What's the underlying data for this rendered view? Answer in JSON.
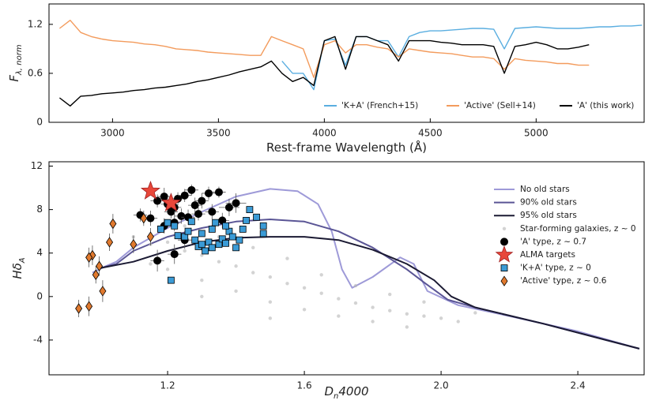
{
  "chart_data": [
    {
      "type": "line",
      "x_label": [
        "Rest-frame Wavelength (Å)"
      ],
      "y_label": [
        "F",
        "λ, norm"
      ],
      "xlim": [
        2700,
        5510
      ],
      "ylim": [
        0,
        1.45
      ],
      "xticks": [
        3000,
        3500,
        4000,
        4500,
        5000
      ],
      "yticks": [
        0,
        0.6,
        1.2
      ],
      "legend": "lower right",
      "x": [
        2750,
        2800,
        2850,
        2900,
        2950,
        3000,
        3050,
        3100,
        3150,
        3200,
        3250,
        3300,
        3350,
        3400,
        3450,
        3500,
        3550,
        3600,
        3650,
        3700,
        3750,
        3800,
        3850,
        3900,
        3950,
        4000,
        4050,
        4100,
        4150,
        4200,
        4250,
        4300,
        4350,
        4400,
        4450,
        4500,
        4550,
        4600,
        4650,
        4700,
        4750,
        4800,
        4850,
        4900,
        4950,
        5000,
        5050,
        5100,
        5150,
        5200,
        5250,
        5300,
        5350,
        5400,
        5450,
        5500
      ],
      "series": [
        {
          "name": "'K+A' (French+15)",
          "color": "#5aaee0",
          "values": [
            null,
            null,
            null,
            null,
            null,
            null,
            null,
            null,
            null,
            null,
            null,
            null,
            null,
            null,
            null,
            null,
            null,
            null,
            null,
            null,
            null,
            0.75,
            0.6,
            0.6,
            0.4,
            1.0,
            1.02,
            0.7,
            1.05,
            1.05,
            1.0,
            1.0,
            0.8,
            1.05,
            1.1,
            1.12,
            1.12,
            1.13,
            1.14,
            1.15,
            1.15,
            1.14,
            0.9,
            1.15,
            1.16,
            1.17,
            1.16,
            1.15,
            1.15,
            1.15,
            1.16,
            1.17,
            1.17,
            1.18,
            1.18,
            1.19
          ]
        },
        {
          "name": "'Active' (Sell+14)",
          "color": "#f39b5c",
          "values": [
            1.15,
            1.25,
            1.1,
            1.05,
            1.02,
            1.0,
            0.99,
            0.98,
            0.96,
            0.95,
            0.93,
            0.9,
            0.89,
            0.88,
            0.86,
            0.85,
            0.84,
            0.83,
            0.82,
            0.82,
            1.05,
            1.0,
            0.95,
            0.9,
            0.55,
            0.95,
            1.0,
            0.85,
            0.95,
            0.95,
            0.92,
            0.9,
            0.8,
            0.9,
            0.88,
            0.86,
            0.85,
            0.84,
            0.82,
            0.8,
            0.8,
            0.78,
            0.65,
            0.78,
            0.76,
            0.75,
            0.74,
            0.72,
            0.72,
            0.7,
            0.7,
            null,
            null,
            null,
            null,
            null
          ]
        },
        {
          "name": "'A' (this work)",
          "color": "#000000",
          "values": [
            0.3,
            0.2,
            0.32,
            0.33,
            0.35,
            0.36,
            0.37,
            0.39,
            0.4,
            0.42,
            0.43,
            0.45,
            0.47,
            0.5,
            0.52,
            0.55,
            0.58,
            0.62,
            0.65,
            0.68,
            0.75,
            0.6,
            0.5,
            0.55,
            0.45,
            1.0,
            1.05,
            0.65,
            1.05,
            1.05,
            1.0,
            0.95,
            0.75,
            1.0,
            1.0,
            1.0,
            0.98,
            0.97,
            0.95,
            0.95,
            0.95,
            0.93,
            0.6,
            0.93,
            0.95,
            0.98,
            0.95,
            0.9,
            0.9,
            0.92,
            0.95,
            null,
            null,
            null,
            null,
            null
          ]
        }
      ]
    },
    {
      "type": "scatter",
      "x_label": [
        "D",
        "n",
        "4000"
      ],
      "y_label": [
        "Hδ",
        "A"
      ],
      "xlim": [
        0.853,
        2.594
      ],
      "ylim": [
        -7.2,
        12.4
      ],
      "xticks": [
        1.2,
        1.6,
        {
          "value": 2,
          "label": "2.0"
        },
        2.4
      ],
      "yticks": [
        -4,
        0,
        4,
        8,
        12
      ],
      "legend": "upper right",
      "series": [
        {
          "name": "No old stars",
          "marker": "line",
          "color": "#9e9ad8",
          "x": [
            0.98,
            1.02,
            1.05,
            1.1,
            1.2,
            1.3,
            1.4,
            1.5,
            1.58,
            1.64,
            1.68,
            1.71,
            1.74,
            1.8,
            1.88,
            1.92,
            1.96,
            2.05,
            2.2,
            2.4,
            2.58
          ],
          "values": [
            2.2,
            2.8,
            3.2,
            4.5,
            6.3,
            7.8,
            9.2,
            9.9,
            9.7,
            8.5,
            6.0,
            2.5,
            0.8,
            1.8,
            3.6,
            3.0,
            0.5,
            -0.8,
            -1.8,
            -3.2,
            -4.8
          ]
        },
        {
          "name": "90% old stars",
          "marker": "line",
          "color": "#5a5595",
          "x": [
            1.0,
            1.05,
            1.1,
            1.2,
            1.3,
            1.4,
            1.5,
            1.6,
            1.7,
            1.8,
            1.9,
            1.95,
            2.02,
            2.1,
            2.3,
            2.58
          ],
          "values": [
            2.6,
            3.0,
            4.2,
            5.5,
            6.3,
            6.9,
            7.1,
            6.9,
            6.0,
            4.5,
            2.5,
            1.3,
            -0.3,
            -1.0,
            -2.5,
            -4.8
          ]
        },
        {
          "name": "95% old stars",
          "marker": "line",
          "color": "#1b1a33",
          "x": [
            1.0,
            1.1,
            1.2,
            1.3,
            1.4,
            1.5,
            1.6,
            1.7,
            1.8,
            1.9,
            1.98,
            2.03,
            2.1,
            2.3,
            2.58
          ],
          "values": [
            2.6,
            3.2,
            4.2,
            5.0,
            5.4,
            5.5,
            5.5,
            5.2,
            4.3,
            3.0,
            1.5,
            0.0,
            -1.0,
            -2.5,
            -4.8
          ]
        },
        {
          "name": "Star-forming galaxies, z ~ 0",
          "marker": "dot",
          "color": "#b5b5b5",
          "x": [
            1.1,
            1.15,
            1.2,
            1.25,
            1.3,
            1.35,
            1.4,
            1.45,
            1.5,
            1.55,
            1.6,
            1.65,
            1.7,
            1.75,
            1.8,
            1.85,
            1.9,
            1.95,
            2.0,
            2.05,
            1.2,
            1.3,
            1.4,
            1.5,
            1.6,
            1.7,
            1.8,
            1.9,
            1.25,
            1.35,
            1.45,
            1.55,
            1.65,
            1.75,
            1.85,
            1.95,
            2.1,
            1.15,
            1.3,
            1.5
          ],
          "values": [
            5.5,
            4.8,
            5.0,
            4.2,
            3.8,
            3.2,
            2.8,
            2.2,
            1.8,
            1.2,
            0.8,
            0.3,
            -0.2,
            -0.6,
            -1.0,
            -1.3,
            -1.6,
            -1.8,
            -2.0,
            -2.3,
            2.5,
            1.5,
            0.5,
            -0.5,
            -1.2,
            -1.8,
            -2.3,
            -2.8,
            6.5,
            5.5,
            4.5,
            3.5,
            2.0,
            1.0,
            0.2,
            -0.5,
            -1.5,
            3.0,
            0.0,
            -2.0
          ]
        },
        {
          "name": "'A' type, z ~ 0.7",
          "marker": "circle",
          "color": "#000000",
          "x": [
            1.12,
            1.15,
            1.17,
            1.19,
            1.2,
            1.21,
            1.22,
            1.23,
            1.24,
            1.25,
            1.27,
            1.28,
            1.29,
            1.3,
            1.32,
            1.35,
            1.38,
            1.4,
            1.19,
            1.22,
            1.26,
            1.17,
            1.22,
            1.25,
            1.33,
            1.36
          ],
          "values": [
            7.5,
            7.2,
            8.8,
            9.2,
            8.5,
            7.8,
            8.2,
            9.0,
            7.4,
            9.3,
            9.8,
            8.4,
            7.6,
            8.8,
            9.5,
            9.6,
            8.2,
            8.6,
            6.5,
            6.8,
            7.3,
            3.3,
            3.9,
            5.2,
            7.8,
            7.0
          ],
          "xerr": [
            0.02,
            0.02,
            0.02,
            0.02,
            0.02,
            0.02,
            0.02,
            0.02,
            0.02,
            0.02,
            0.02,
            0.02,
            0.02,
            0.02,
            0.02,
            0.02,
            0.03,
            0.03,
            0.02,
            0.02,
            0.02,
            0.02,
            0.02,
            0.02,
            0.02,
            0.02
          ],
          "yerr": [
            0.6,
            0.7,
            0.6,
            0.8,
            0.7,
            0.6,
            0.7,
            0.6,
            0.7,
            0.6,
            0.5,
            0.7,
            0.6,
            0.7,
            0.6,
            0.5,
            0.8,
            0.9,
            0.7,
            0.8,
            0.7,
            1.0,
            0.9,
            0.8,
            0.7,
            0.7
          ]
        },
        {
          "name": "ALMA targets",
          "marker": "star",
          "color": "#e8473a",
          "x": [
            1.15,
            1.21
          ],
          "values": [
            9.7,
            8.6
          ]
        },
        {
          "name": "'K+A' type, z ~ 0",
          "marker": "square",
          "color": "#3b9bd6",
          "x": [
            1.18,
            1.2,
            1.22,
            1.23,
            1.25,
            1.26,
            1.27,
            1.28,
            1.29,
            1.3,
            1.31,
            1.32,
            1.33,
            1.34,
            1.35,
            1.36,
            1.37,
            1.38,
            1.39,
            1.4,
            1.41,
            1.42,
            1.43,
            1.44,
            1.46,
            1.48,
            1.48,
            1.37,
            1.21,
            1.3,
            1.33
          ],
          "values": [
            6.2,
            6.8,
            6.5,
            5.6,
            5.5,
            6.0,
            6.9,
            5.2,
            4.6,
            5.8,
            4.2,
            5.0,
            4.5,
            6.8,
            4.8,
            5.3,
            4.9,
            6.0,
            5.5,
            4.5,
            5.2,
            6.2,
            7.0,
            8.0,
            7.3,
            6.5,
            5.8,
            6.5,
            1.5,
            4.8,
            6.2
          ]
        },
        {
          "name": "'Active' type, z ~ 0.6",
          "marker": "diamond",
          "color": "#e0792e",
          "x": [
            0.94,
            0.97,
            0.98,
            0.99,
            1.0,
            1.01,
            1.03,
            1.04,
            1.1,
            1.13,
            1.15,
            0.97
          ],
          "values": [
            -1.1,
            -0.9,
            3.8,
            2.0,
            2.8,
            0.5,
            5.0,
            6.7,
            4.8,
            7.2,
            5.5,
            3.6
          ],
          "xerr": [
            0.01,
            0.01,
            0.01,
            0.01,
            0.01,
            0.01,
            0.01,
            0.01,
            0.01,
            0.01,
            0.01,
            0.01
          ],
          "yerr": [
            0.8,
            0.9,
            0.9,
            0.8,
            0.9,
            1.0,
            0.8,
            0.9,
            0.8,
            0.7,
            0.8,
            0.9
          ]
        }
      ]
    }
  ]
}
